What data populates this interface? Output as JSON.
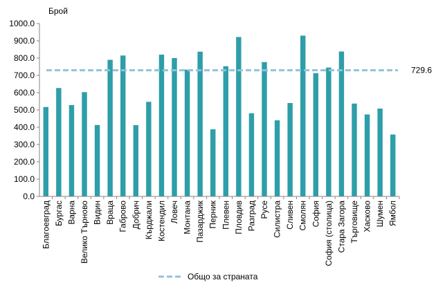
{
  "chart_data": {
    "type": "bar",
    "ylabel": "Брой",
    "ylim": [
      0,
      1000
    ],
    "ytick_labels": [
      "0.0",
      "100.0",
      "200.0",
      "300.0",
      "400.0",
      "500.0",
      "600.0",
      "700.0",
      "800.0",
      "900.0",
      "1000.0"
    ],
    "grid": false,
    "categories": [
      "Благоевград",
      "Бургас",
      "Варна",
      "Велико Търново",
      "Видин",
      "Враца",
      "Габрово",
      "Добрич",
      "Кърджали",
      "Костендил",
      "Ловеч",
      "Монтана",
      "Пазарджик",
      "Перник",
      "Плевен",
      "Пловдив",
      "Разград",
      "Русе",
      "Силистра",
      "Сливен",
      "Смолян",
      "София",
      "София (столица)",
      "Стара Загора",
      "Търговище",
      "Хасково",
      "Шумен",
      "Ямбол"
    ],
    "values": [
      517,
      627,
      528,
      603,
      413,
      790,
      815,
      412,
      547,
      820,
      800,
      733,
      837,
      388,
      753,
      922,
      481,
      777,
      440,
      540,
      930,
      713,
      745,
      838,
      537,
      474,
      508,
      358
    ],
    "bar_color": "#2e9ea8",
    "reference_line": {
      "value": 729.6,
      "label": "729.6",
      "name": "Общо за страната",
      "color": "#8fc3d9",
      "style": "dashed"
    },
    "legend": {
      "position": "bottom",
      "entries": [
        "Общо за страната"
      ]
    }
  }
}
